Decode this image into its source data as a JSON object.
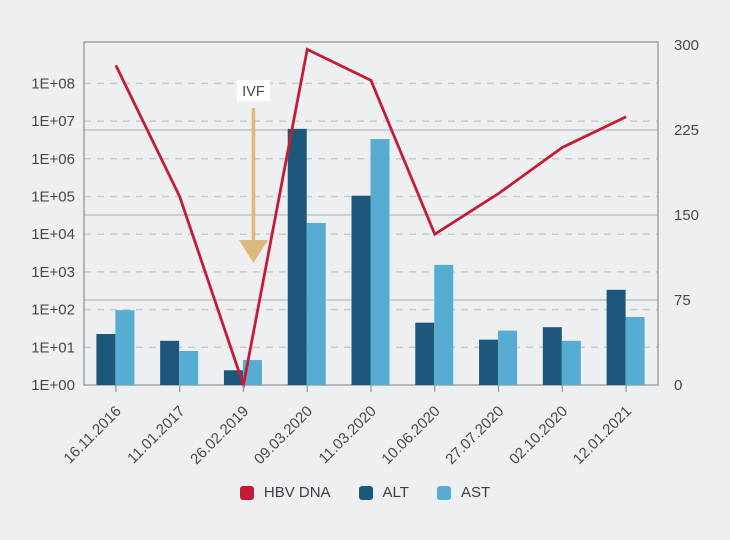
{
  "colors": {
    "background": "#edeff1",
    "hbv_dna": "#c41c36",
    "alt": "#1c587c",
    "ast": "#56acd1",
    "annotation_arrow": "#ddb97e",
    "annotation_box_bg": "#ffffff",
    "annotation_text": "#2e3134",
    "axis_border": "#8f969c",
    "grid_dashed": "#c8cbd0",
    "grid_solid": "#b7bbc0",
    "label_text": "#45494e"
  },
  "chart_data": {
    "type": "combo",
    "categories": [
      "16.11.2016",
      "11.01.2017",
      "26.02.2019",
      "09.03.2020",
      "11.03.2020",
      "10.06.2020",
      "27.07.2020",
      "02.10.2020",
      "12.01.2021"
    ],
    "series": [
      {
        "name": "HBV DNA",
        "type": "line",
        "axis": "left-log",
        "values": [
          300000000,
          100000,
          1,
          800000000,
          120000000,
          10000,
          120000,
          2000000,
          13000000
        ]
      },
      {
        "name": "ALT",
        "type": "bar",
        "axis": "right-linear",
        "values": [
          45,
          39,
          13,
          226,
          167,
          55,
          40,
          51,
          84
        ]
      },
      {
        "name": "AST",
        "type": "bar",
        "axis": "right-linear",
        "values": [
          66,
          30,
          22,
          143,
          217,
          106,
          48,
          39,
          60
        ]
      }
    ],
    "left_axis": {
      "scale": "log",
      "tick_labels": [
        "1E+00",
        "1E+01",
        "1E+02",
        "1E+03",
        "1E+04",
        "1E+05",
        "1E+06",
        "1E+07",
        "1E+08"
      ]
    },
    "right_axis": {
      "scale": "linear",
      "ticks": [
        0,
        75,
        150,
        225,
        300
      ],
      "range": [
        0,
        300
      ]
    },
    "annotation": {
      "text": "IVF",
      "category": "26.02.2019",
      "category_index": 2
    },
    "grid": {
      "dashed_log_decades": [
        1,
        2,
        3,
        4,
        5,
        6,
        7,
        8
      ],
      "solid_right_values": [
        75,
        150,
        225
      ]
    },
    "legend_position": "bottom"
  }
}
